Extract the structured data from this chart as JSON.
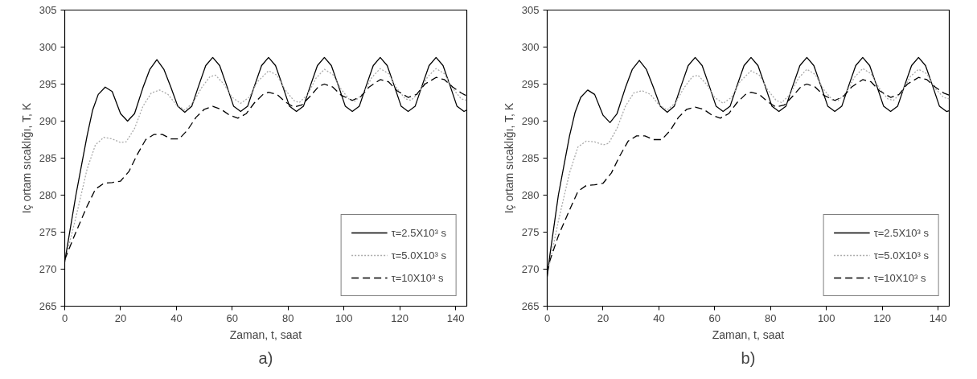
{
  "chart_data": [
    {
      "type": "line",
      "xlabel": "Zaman, t, saat",
      "ylabel": "Iç ortam sıcaklığı, T, K",
      "annotations": [
        "a)"
      ],
      "xlim": [
        0,
        144
      ],
      "ylim": [
        265,
        305
      ],
      "xticks": [
        0,
        20,
        40,
        60,
        80,
        100,
        120,
        140
      ],
      "yticks": [
        265,
        270,
        275,
        280,
        285,
        290,
        295,
        300,
        305
      ],
      "grid": false,
      "legend": "bottom right",
      "marker": "none",
      "series": [
        {
          "name": "τ=2.5X10³ s",
          "color": "#000000",
          "line_style": "solid",
          "x": [
            0,
            2,
            4,
            6,
            8,
            10,
            12,
            14.5,
            17,
            20,
            22.5,
            25,
            28,
            30.5,
            33,
            35.5,
            38,
            40.5,
            43,
            45.5,
            48,
            50.5,
            53,
            55.5,
            58,
            60.5,
            63,
            65.5,
            68,
            70.5,
            73,
            75.5,
            78,
            80.5,
            83,
            85.5,
            88,
            90.5,
            93,
            95.5,
            98,
            100.5,
            103,
            105.5,
            108,
            110.5,
            113,
            115.5,
            118,
            120.5,
            123,
            125.5,
            128,
            130.5,
            133,
            135.5,
            138,
            140.5,
            143,
            144
          ],
          "values": [
            271,
            275.5,
            280,
            284,
            288,
            291.5,
            293.6,
            294.6,
            294,
            291,
            290,
            291,
            294.5,
            297,
            298.3,
            297,
            294.6,
            292,
            291.2,
            292,
            294.8,
            297.5,
            298.6,
            297.5,
            294.8,
            292,
            291.3,
            292,
            294.8,
            297.5,
            298.6,
            297.5,
            294.8,
            292,
            291.3,
            292,
            294.8,
            297.5,
            298.6,
            297.5,
            294.8,
            292,
            291.3,
            292,
            294.8,
            297.5,
            298.6,
            297.5,
            294.8,
            292,
            291.3,
            292,
            294.8,
            297.5,
            298.6,
            297.5,
            294.8,
            292,
            291.3,
            291.5
          ]
        },
        {
          "name": "τ=5.0X10³ s",
          "color": "#aaaaaa",
          "line_style": "dotted",
          "x": [
            0,
            4,
            8,
            11,
            14,
            17,
            20,
            22,
            25,
            28,
            31,
            34,
            37,
            40,
            43,
            46,
            49,
            52,
            54,
            57,
            60,
            63,
            66,
            69,
            73,
            76,
            79,
            82,
            84,
            87,
            90,
            93,
            96,
            99,
            102,
            104,
            107,
            110,
            113,
            116,
            119,
            122,
            124,
            127,
            130,
            133,
            136,
            139,
            142,
            144
          ],
          "values": [
            271,
            277,
            283.5,
            286.8,
            287.8,
            287.6,
            287.1,
            287.2,
            289,
            292,
            293.8,
            294.2,
            293.6,
            292.2,
            291.5,
            292.5,
            294.5,
            296,
            296.2,
            295,
            293.2,
            292.4,
            293.2,
            295.3,
            296.8,
            296.2,
            294.2,
            292.8,
            292.5,
            293.6,
            295.8,
            297,
            296.3,
            294.3,
            292.9,
            292.7,
            293.8,
            295.9,
            297.1,
            296.4,
            294.4,
            293,
            292.8,
            293.9,
            296,
            297.1,
            296.4,
            294.4,
            293,
            292.8
          ]
        },
        {
          "name": "τ=10X10³ s",
          "color": "#000000",
          "line_style": "dashed",
          "x": [
            0,
            4,
            8,
            11,
            14,
            17,
            20,
            23,
            26,
            29,
            32,
            35,
            38,
            41,
            44,
            47,
            50,
            53,
            56,
            59,
            62,
            65,
            68,
            71,
            73,
            76,
            79,
            82,
            85,
            88,
            91,
            93,
            96,
            99,
            103,
            106,
            109,
            113,
            116,
            119,
            123,
            126,
            129,
            133,
            136,
            139,
            142,
            144
          ],
          "values": [
            271.3,
            275,
            278.5,
            280.8,
            281.6,
            281.7,
            281.9,
            283.2,
            285.5,
            287.5,
            288.2,
            288.2,
            287.6,
            287.6,
            288.8,
            290.5,
            291.6,
            292,
            291.6,
            290.8,
            290.4,
            291,
            292.5,
            293.6,
            293.9,
            293.6,
            292.6,
            291.9,
            292.2,
            293.4,
            294.7,
            295,
            294.6,
            293.5,
            292.8,
            293.3,
            294.6,
            295.6,
            295.3,
            294.1,
            293.2,
            293.6,
            295,
            295.9,
            295.6,
            294.6,
            293.8,
            293.4
          ]
        }
      ]
    },
    {
      "type": "line",
      "xlabel": "Zaman, t, saat",
      "ylabel": "Iç ortam sıcaklığı, T, K",
      "annotations": [
        "b)"
      ],
      "xlim": [
        0,
        144
      ],
      "ylim": [
        265,
        305
      ],
      "xticks": [
        0,
        20,
        40,
        60,
        80,
        100,
        120,
        140
      ],
      "yticks": [
        265,
        270,
        275,
        280,
        285,
        290,
        295,
        300,
        305
      ],
      "grid": false,
      "legend": "bottom right",
      "marker": "none",
      "series": [
        {
          "name": "τ=2.5X10³ s",
          "color": "#000000",
          "line_style": "solid",
          "x": [
            0,
            1,
            4,
            6,
            8,
            10,
            12,
            14.5,
            17,
            20,
            22.5,
            25,
            28,
            30.5,
            33,
            35.5,
            38,
            40.5,
            43,
            45.5,
            48,
            50.5,
            53,
            55.5,
            58,
            60.5,
            63,
            65.5,
            68,
            70.5,
            73,
            75.5,
            78,
            80.5,
            83,
            85.5,
            88,
            90.5,
            93,
            95.5,
            98,
            100.5,
            103,
            105.5,
            108,
            110.5,
            113,
            115.5,
            118,
            120.5,
            123,
            125.5,
            128,
            130.5,
            133,
            135.5,
            138,
            140.5,
            143,
            144
          ],
          "values": [
            269,
            272,
            280,
            284,
            288,
            291.2,
            293.2,
            294.2,
            293.6,
            290.8,
            289.8,
            291,
            294.5,
            297,
            298.2,
            297,
            294.6,
            292,
            291.2,
            292,
            294.8,
            297.5,
            298.6,
            297.5,
            294.8,
            292,
            291.3,
            292,
            294.8,
            297.5,
            298.6,
            297.5,
            294.8,
            292,
            291.3,
            292,
            294.8,
            297.5,
            298.6,
            297.5,
            294.8,
            292,
            291.3,
            292,
            294.8,
            297.5,
            298.6,
            297.5,
            294.8,
            292,
            291.3,
            292,
            294.8,
            297.5,
            298.6,
            297.5,
            294.8,
            292,
            291.3,
            291.4
          ]
        },
        {
          "name": "τ=5.0X10³ s",
          "color": "#aaaaaa",
          "line_style": "dotted",
          "x": [
            0,
            1,
            4,
            8,
            11,
            14,
            17,
            20,
            22,
            25,
            28,
            31,
            34,
            37,
            40,
            43,
            46,
            49,
            52,
            54,
            57,
            60,
            63,
            66,
            69,
            73,
            76,
            79,
            82,
            84,
            87,
            90,
            93,
            96,
            99,
            102,
            104,
            107,
            110,
            113,
            116,
            119,
            122,
            124,
            127,
            130,
            133,
            136,
            139,
            142,
            144
          ],
          "values": [
            269.5,
            271,
            276.5,
            283,
            286.5,
            287.3,
            287.2,
            286.8,
            287,
            289,
            292,
            293.8,
            294.1,
            293.6,
            292.2,
            291.5,
            292.5,
            294.5,
            296,
            296.2,
            295,
            293.2,
            292.4,
            293.2,
            295.3,
            296.8,
            296.2,
            294.2,
            292.8,
            292.5,
            293.6,
            295.8,
            297,
            296.3,
            294.3,
            292.9,
            292.7,
            293.8,
            295.9,
            297.1,
            296.4,
            294.4,
            293,
            292.8,
            293.9,
            296,
            297,
            296.4,
            294.4,
            293.2,
            293
          ]
        },
        {
          "name": "τ=10X10³ s",
          "color": "#000000",
          "line_style": "dashed",
          "x": [
            0,
            1,
            4,
            8,
            11,
            14,
            17,
            20,
            23,
            26,
            29,
            32,
            35,
            38,
            41,
            44,
            47,
            50,
            53,
            56,
            59,
            62,
            65,
            68,
            71,
            73,
            76,
            79,
            82,
            85,
            88,
            91,
            93,
            96,
            99,
            103,
            106,
            109,
            113,
            116,
            119,
            123,
            126,
            129,
            133,
            136,
            139,
            142,
            144
          ],
          "values": [
            269.5,
            271.2,
            274.5,
            278,
            280.5,
            281.3,
            281.4,
            281.6,
            283,
            285.3,
            287.3,
            288,
            288,
            287.5,
            287.5,
            288.7,
            290.5,
            291.6,
            291.9,
            291.6,
            290.8,
            290.4,
            291,
            292.5,
            293.6,
            293.9,
            293.6,
            292.6,
            291.9,
            292.2,
            293.4,
            294.7,
            295,
            294.6,
            293.5,
            292.8,
            293.3,
            294.6,
            295.6,
            295.3,
            294.1,
            293.2,
            293.6,
            295,
            295.9,
            295.6,
            294.6,
            293.8,
            293.5
          ]
        }
      ]
    }
  ]
}
